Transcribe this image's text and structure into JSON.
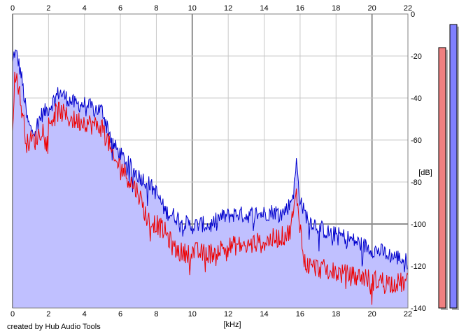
{
  "chart_data": {
    "type": "area",
    "xlabel": "[kHz]",
    "ylabel": "[dB]",
    "xlim": [
      0,
      22
    ],
    "ylim": [
      -140,
      0
    ],
    "x_ticks": [
      0,
      2,
      4,
      6,
      8,
      10,
      12,
      14,
      16,
      18,
      20,
      22
    ],
    "y_ticks": [
      0,
      -20,
      -40,
      -60,
      -80,
      -100,
      -120,
      -140
    ],
    "grid": true,
    "credit": "created by Hub Audio Tools",
    "colors": {
      "fill": "#c0c0ff",
      "blue": "#0000cc",
      "red": "#ee0000",
      "grid": "#c8c8c8",
      "major_grid": "#909090",
      "meter_left": "#f08080",
      "meter_right": "#8080ff"
    },
    "series": [
      {
        "color": "blue",
        "x": [
          0,
          0.1,
          0.25,
          0.5,
          0.8,
          1.0,
          1.3,
          1.6,
          2.0,
          2.3,
          2.6,
          3.0,
          3.5,
          4.0,
          4.5,
          5.0,
          5.3,
          5.6,
          6.0,
          6.5,
          7.0,
          7.5,
          8.0,
          8.5,
          9.0,
          9.5,
          10.0,
          10.5,
          11.0,
          11.5,
          12.0,
          12.5,
          13.0,
          13.5,
          14.0,
          14.5,
          15.0,
          15.4,
          15.65,
          15.8,
          15.95,
          16.2,
          16.5,
          17.0,
          17.5,
          18.0,
          18.5,
          19.0,
          19.5,
          20.0,
          20.5,
          21.0,
          21.5,
          22.0
        ],
        "y": [
          -24,
          -18,
          -20,
          -30,
          -50,
          -55,
          -54,
          -48,
          -45,
          -41,
          -37,
          -40,
          -43,
          -43,
          -45,
          -46,
          -54,
          -62,
          -67,
          -72,
          -77,
          -80,
          -85,
          -94,
          -96,
          -99,
          -101,
          -100,
          -101,
          -97,
          -96,
          -95,
          -96,
          -95,
          -95,
          -94,
          -95,
          -91,
          -84,
          -70,
          -86,
          -94,
          -98,
          -101,
          -104,
          -105,
          -106,
          -108,
          -110,
          -112,
          -113,
          -115,
          -116,
          -118
        ]
      },
      {
        "color": "red",
        "x": [
          0,
          0.1,
          0.25,
          0.5,
          0.8,
          1.0,
          1.3,
          1.6,
          2.0,
          2.3,
          2.6,
          3.0,
          3.5,
          4.0,
          4.5,
          5.0,
          5.3,
          5.6,
          6.0,
          6.5,
          7.0,
          7.5,
          8.0,
          8.5,
          9.0,
          9.5,
          10.0,
          10.5,
          11.0,
          11.5,
          12.0,
          12.5,
          13.0,
          13.5,
          14.0,
          14.5,
          15.0,
          15.4,
          15.65,
          15.8,
          15.95,
          16.2,
          16.5,
          17.0,
          17.5,
          18.0,
          18.5,
          19.0,
          19.5,
          20.0,
          20.5,
          21.0,
          21.5,
          22.0
        ],
        "y": [
          -55,
          -32,
          -30,
          -45,
          -62,
          -60,
          -60,
          -55,
          -53,
          -48,
          -46,
          -49,
          -51,
          -51,
          -53,
          -54,
          -60,
          -70,
          -72,
          -79,
          -85,
          -98,
          -100,
          -104,
          -112,
          -114,
          -113,
          -114,
          -114,
          -112,
          -111,
          -110,
          -111,
          -109,
          -109,
          -107,
          -106,
          -104,
          -94,
          -86,
          -96,
          -118,
          -120,
          -121,
          -122,
          -123,
          -124,
          -125,
          -125,
          -127,
          -127,
          -128,
          -128,
          -128
        ]
      }
    ],
    "level_meters": [
      {
        "channel": "left",
        "peak_db": -16
      },
      {
        "channel": "right",
        "peak_db": -5
      }
    ]
  }
}
